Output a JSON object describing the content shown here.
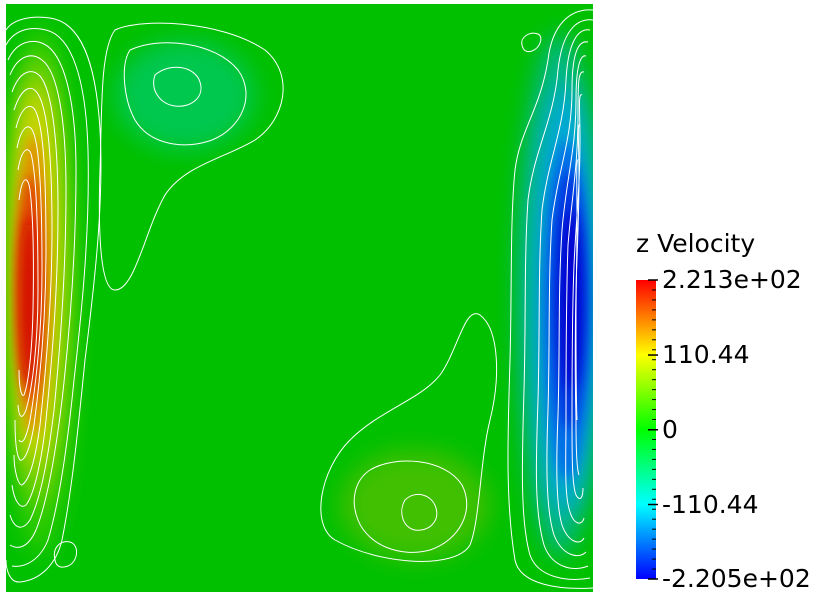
{
  "chart_data": {
    "type": "heatmap",
    "field": "z Velocity",
    "colorbar": {
      "title": "z Velocity",
      "range": [
        -220.5,
        221.3
      ],
      "tick_labels": [
        "2.213e+02",
        "110.44",
        "0",
        "-110.44",
        "-2.205e+02"
      ],
      "tick_values": [
        221.3,
        110.44,
        0,
        -110.44,
        -220.5
      ],
      "colormap": [
        "#0000ff",
        "#00ffff",
        "#00ff00",
        "#ffff00",
        "#ff0000"
      ],
      "placement": "right"
    },
    "background_color": "#00c000",
    "contour_color": "#ffffff",
    "features": [
      {
        "name": "max-core-left",
        "sign": "positive",
        "peak": 221.3
      },
      {
        "name": "min-core-right",
        "sign": "negative",
        "peak": -220.5
      },
      {
        "name": "secondary-top-left",
        "sign": "negative",
        "peak": -25
      },
      {
        "name": "secondary-bottom-right",
        "sign": "positive",
        "peak": 30
      }
    ]
  }
}
